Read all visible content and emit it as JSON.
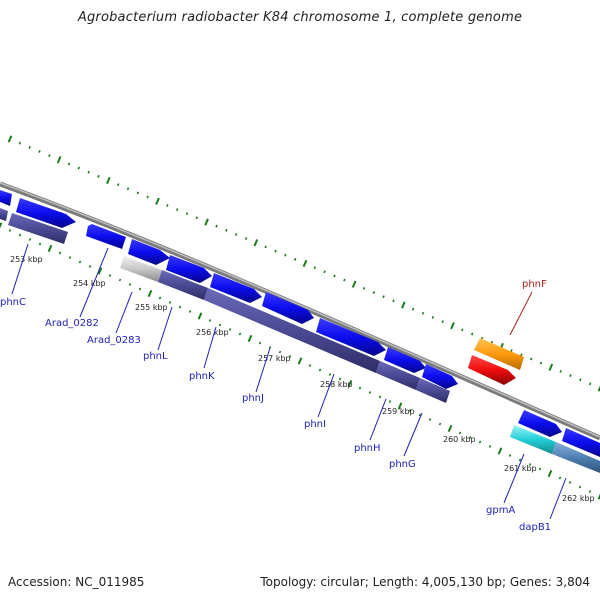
{
  "header": {
    "title": "Agrobacterium radiobacter K84 chromosome 1, complete genome"
  },
  "footer": {
    "accession": "Accession: NC_011985",
    "summary": "Topology: circular; Length: 4,005,130 bp; Genes: 3,804"
  },
  "colors": {
    "backbone": "#8a8a8a",
    "gene_blue": "#0c0cee",
    "gene_purple": "#4b4a94",
    "gene_grey": "#c8c8c8",
    "gene_orange": "#ff9a0c",
    "gene_red": "#ee0c0c",
    "gene_cyan": "#22cfd8",
    "gene_steelblue": "#4f7fb2",
    "tick_green": "#1b7d1b",
    "label_blue": "#1f22b8",
    "label_red": "#b02020"
  },
  "ruler": {
    "labels": [
      "253 kbp",
      "254 kbp",
      "255 kbp",
      "256 kbp",
      "257 kbp",
      "258 kbp",
      "259 kbp",
      "260 kbp",
      "261 kbp",
      "262 kbp"
    ]
  },
  "genes": {
    "labels": [
      "phnC",
      "Arad_0282",
      "Arad_0283",
      "phnL",
      "phnK",
      "phnJ",
      "phnI",
      "phnH",
      "phnG",
      "phnF",
      "gpmA",
      "dapB1"
    ]
  }
}
